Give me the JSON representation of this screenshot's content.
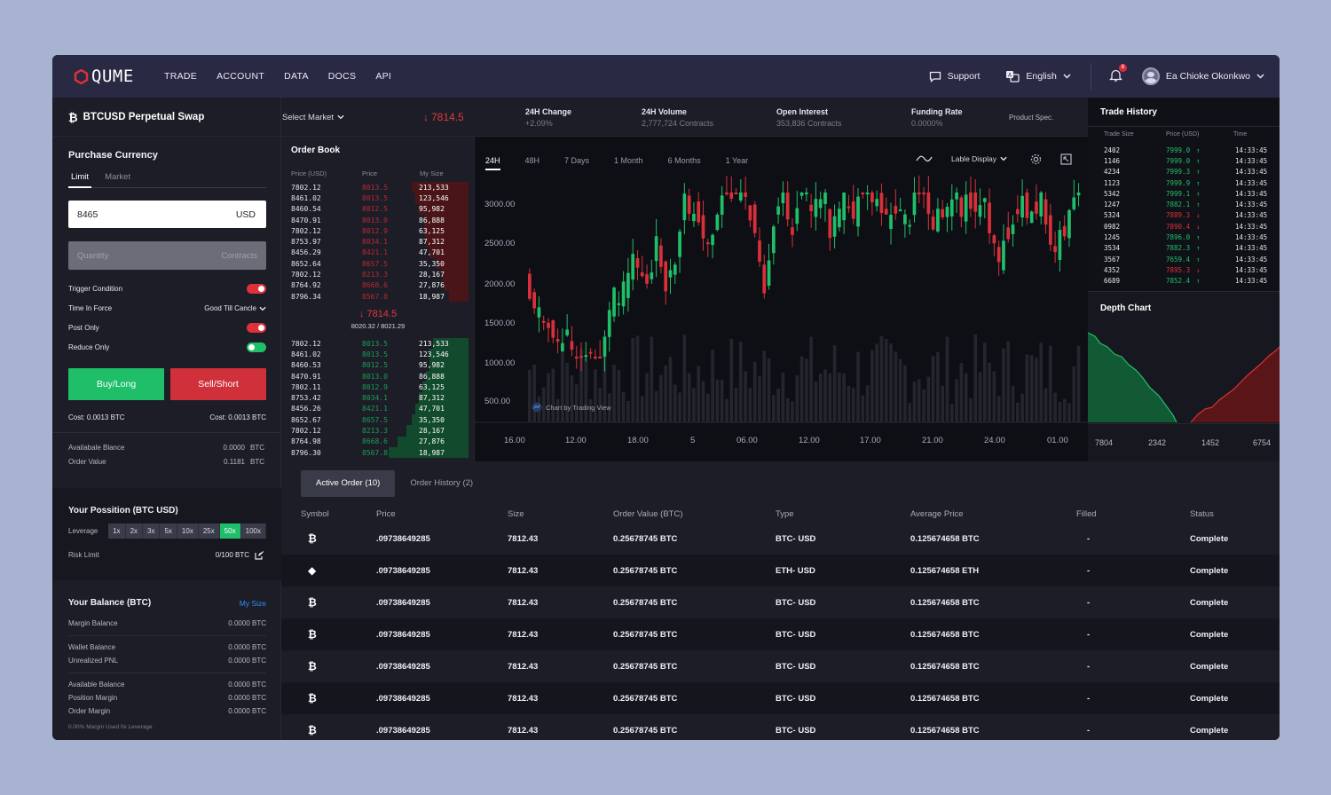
{
  "nav": {
    "brand": "QUME",
    "items": [
      "TRADE",
      "ACCOUNT",
      "DATA",
      "DOCS",
      "API"
    ],
    "support": "Support",
    "language": "English",
    "notifications": "8",
    "user": "Ea Chioke Okonkwo"
  },
  "ticker": {
    "symbol": "BTCUSD Perpetual Swap",
    "select_market": "Select Market",
    "price": "7814.5",
    "change_label": "24H Change",
    "change_value": "+2.09%",
    "volume_label": "24H Volume",
    "volume_value": "2,777,724 Contracts",
    "oi_label": "Open Interest",
    "oi_value": "353,836 Contracts",
    "funding_label": "Funding Rate",
    "funding_value": "0.0000%",
    "product_spec": "Product Spec."
  },
  "purchase": {
    "title": "Purchase Currency",
    "tabs": [
      "Limit",
      "Market"
    ],
    "price_value": "8465",
    "price_unit": "USD",
    "qty_placeholder": "Quantity",
    "qty_unit": "Contracts",
    "trigger_label": "Trigger Condition",
    "tif_label": "Time In Force",
    "tif_value": "Good Till Cancle",
    "post_label": "Post Only",
    "reduce_label": "Reduce Only",
    "buy": "Buy/Long",
    "sell": "Sell/Short",
    "buy_cost": "Cost: 0.0013 BTC",
    "sell_cost": "Cost: 0.0013 BTC",
    "avail_label": "Availabale Blance",
    "avail_value": "0.0000",
    "avail_unit": "BTC",
    "order_value_label": "Order Value",
    "order_value": "0.1181",
    "order_value_unit": "BTC"
  },
  "position": {
    "title": "Your Possition (BTC USD)",
    "leverage_label": "Leverage",
    "leverages": [
      "1x",
      "2x",
      "3x",
      "5x",
      "10x",
      "25x",
      "50x",
      "100x"
    ],
    "active_leverage": "50x",
    "risk_label": "Risk Limit",
    "risk_value": "0/100 BTC"
  },
  "balance": {
    "title": "Your Balance (BTC)",
    "my_size": "My Size",
    "margin_label": "Margin Balance",
    "margin_value": "0.0000 BTC",
    "wallet_label": "Wallet Balance",
    "wallet_value": "0.0000 BTC",
    "pnl_label": "Unrealized PNL",
    "pnl_value": "0.0000 BTC",
    "available_label": "Available Balance",
    "available_value": "0.0000 BTC",
    "pos_margin_label": "Position Margin",
    "pos_margin_value": "0.0000 BTC",
    "order_margin_label": "Order Margin",
    "order_margin_value": "0.0000 BTC",
    "footnote": "0.00% Margin Used 0x Leverage"
  },
  "orderbook": {
    "title": "Order Book",
    "headers": [
      "Price (USD)",
      "Price",
      "My Size"
    ],
    "asks": [
      [
        "7802.12",
        "8013.5",
        "213,533"
      ],
      [
        "8461.02",
        "8013.5",
        "123,546"
      ],
      [
        "8460.54",
        "8012.5",
        "95,982"
      ],
      [
        "8470.91",
        "8013.0",
        "86,888"
      ],
      [
        "7802.12",
        "8012.9",
        "63,125"
      ],
      [
        "8753.97",
        "8034.1",
        "87,312"
      ],
      [
        "8456.29",
        "8421.1",
        "47,701"
      ],
      [
        "8652.64",
        "8657.5",
        "35,350"
      ],
      [
        "7802.12",
        "8213.3",
        "28,167"
      ],
      [
        "8764.92",
        "8668.6",
        "27,876"
      ],
      [
        "8796.34",
        "8567.8",
        "18,987"
      ]
    ],
    "ask_depth": [
      0.32,
      0.3,
      0.28,
      0.25,
      0.25,
      0.24,
      0.22,
      0.18,
      0.15,
      0.14,
      0.11
    ],
    "mid_price": "7814.5",
    "mid_sub": "8020.32 / 8021.29",
    "bids": [
      [
        "7802.12",
        "8013.5",
        "213,533"
      ],
      [
        "8461.02",
        "8013.5",
        "123,546"
      ],
      [
        "8460.53",
        "8012.5",
        "95,982"
      ],
      [
        "8470.91",
        "8013.0",
        "86,888"
      ],
      [
        "7802.11",
        "8012.9",
        "63,125"
      ],
      [
        "8753.42",
        "8034.1",
        "87,312"
      ],
      [
        "8456.26",
        "8421.1",
        "47,701"
      ],
      [
        "8652.67",
        "8657.5",
        "35,350"
      ],
      [
        "7802.12",
        "8213.3",
        "28,167"
      ],
      [
        "8764.98",
        "8668.6",
        "27,876"
      ],
      [
        "8796.30",
        "8567.8",
        "18,987"
      ]
    ],
    "bid_depth": [
      0.2,
      0.22,
      0.22,
      0.24,
      0.26,
      0.28,
      0.3,
      0.32,
      0.35,
      0.4,
      0.45
    ]
  },
  "chart": {
    "tabs": [
      "24H",
      "48H",
      "7 Days",
      "1 Month",
      "6 Months",
      "1 Year"
    ],
    "display_label": "Lable Display",
    "watermark": "Chart by Trading View",
    "y_labels": [
      "3000.00",
      "2500.00",
      "2000.00",
      "1500.00",
      "1000.00",
      "500.00"
    ],
    "x_labels": [
      "16.00",
      "12.00",
      "18.00",
      "5",
      "06.00",
      "12.00",
      "17.00",
      "21.00",
      "24.00",
      "01.00"
    ],
    "colors": {
      "up": "#1fbf6a",
      "down": "#d8303a",
      "volume": "#24252d"
    }
  },
  "trade_history": {
    "title": "Trade History",
    "headers": [
      "Trade Size",
      "Price (USD)",
      "Time"
    ],
    "rows": [
      [
        "2402",
        "7999.0",
        "up",
        "14:33:45"
      ],
      [
        "1146",
        "7999.0",
        "up",
        "14:33:45"
      ],
      [
        "4234",
        "7999.3",
        "up",
        "14:33:45"
      ],
      [
        "1123",
        "7999.9",
        "up",
        "14:33:45"
      ],
      [
        "5342",
        "7999.1",
        "up",
        "14:33:45"
      ],
      [
        "1247",
        "7882.1",
        "up",
        "14:33:45"
      ],
      [
        "5324",
        "7889.3",
        "down",
        "14:33:45"
      ],
      [
        "0982",
        "7890.4",
        "down",
        "14:33:45"
      ],
      [
        "1245",
        "7896.0",
        "up",
        "14:33:45"
      ],
      [
        "3534",
        "7882.3",
        "up",
        "14:33:45"
      ],
      [
        "3567",
        "7659.4",
        "up",
        "14:33:45"
      ],
      [
        "4352",
        "7895.3",
        "down",
        "14:33:45"
      ],
      [
        "6689",
        "7852.4",
        "up",
        "14:33:45"
      ]
    ]
  },
  "depth_chart": {
    "title": "Depth Chart",
    "x_labels": [
      "7804",
      "2342",
      "1452",
      "6754"
    ]
  },
  "orders": {
    "tabs": [
      "Active Order (10)",
      "Order History (2)"
    ],
    "headers": [
      "Symbol",
      "Price",
      "Size",
      "Order Value (BTC)",
      "Type",
      "Average Price",
      "Filled",
      "Status"
    ],
    "rows": [
      {
        "icon": "btc",
        "price": ".09738649285",
        "size": "7812.43",
        "value": "0.25678745 BTC",
        "type": "BTC- USD",
        "avg": "0.125674658 BTC",
        "filled": "-",
        "status": "Complete"
      },
      {
        "icon": "eth",
        "price": ".09738649285",
        "size": "7812.43",
        "value": "0.25678745 BTC",
        "type": "ETH- USD",
        "avg": "0.125674658 ETH",
        "filled": "-",
        "status": "Complete"
      },
      {
        "icon": "btc",
        "price": ".09738649285",
        "size": "7812.43",
        "value": "0.25678745 BTC",
        "type": "BTC- USD",
        "avg": "0.125674658 BTC",
        "filled": "-",
        "status": "Complete"
      },
      {
        "icon": "btc",
        "price": ".09738649285",
        "size": "7812.43",
        "value": "0.25678745 BTC",
        "type": "BTC- USD",
        "avg": "0.125674658 BTC",
        "filled": "-",
        "status": "Complete"
      },
      {
        "icon": "btc",
        "price": ".09738649285",
        "size": "7812.43",
        "value": "0.25678745 BTC",
        "type": "BTC- USD",
        "avg": "0.125674658 BTC",
        "filled": "-",
        "status": "Complete"
      },
      {
        "icon": "btc",
        "price": ".09738649285",
        "size": "7812.43",
        "value": "0.25678745 BTC",
        "type": "BTC- USD",
        "avg": "0.125674658 BTC",
        "filled": "-",
        "status": "Complete"
      },
      {
        "icon": "btc",
        "price": ".09738649285",
        "size": "7812.43",
        "value": "0.25678745 BTC",
        "type": "BTC- USD",
        "avg": "0.125674658 BTC",
        "filled": "-",
        "status": "Complete"
      }
    ]
  }
}
